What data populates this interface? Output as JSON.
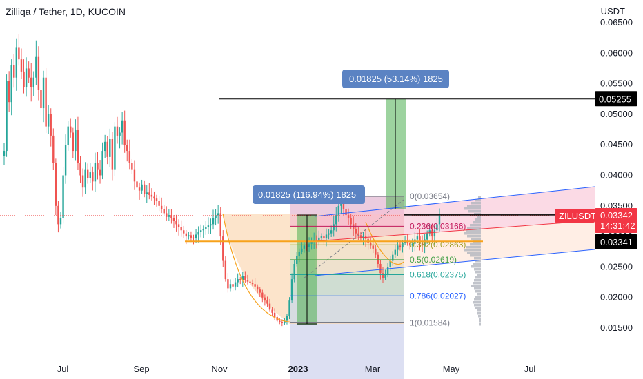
{
  "header": {
    "title": "Zilliqa / Tether, 1D, KUCOIN",
    "unit": "USDT"
  },
  "chart_data": {
    "type": "candlestick",
    "symbol": "ZILUSDT",
    "exchange": "KUCOIN",
    "interval": "1D",
    "ylim": [
      0.0138,
      0.0655
    ],
    "y_ticks": [
      "0.06500",
      "0.06000",
      "0.05500",
      "0.05000",
      "0.04500",
      "0.04000",
      "0.03500",
      "0.03000",
      "0.02500",
      "0.02000",
      "0.01500"
    ],
    "x_ticks": [
      {
        "label": "Jul",
        "bold": false
      },
      {
        "label": "Sep",
        "bold": false
      },
      {
        "label": "Nov",
        "bold": false
      },
      {
        "label": "2023",
        "bold": true
      },
      {
        "label": "Mar",
        "bold": false
      },
      {
        "label": "May",
        "bold": false
      },
      {
        "label": "Jul",
        "bold": false
      }
    ],
    "price_path": [
      [
        0.044,
        0.0555,
        0.052,
        0.058,
        0.056,
        0.061,
        0.059,
        0.057,
        0.0545,
        0.0575,
        0.056,
        0.0545,
        0.056,
        0.0595,
        0.054,
        0.051,
        0.056,
        0.048,
        0.05,
        0.0465,
        0.042,
        0.035,
        0.032,
        0.033,
        0.04,
        0.045,
        0.048,
        0.047,
        0.044,
        0.0475,
        0.042,
        0.04,
        0.038,
        0.041,
        0.0395,
        0.0405,
        0.039,
        0.042,
        0.041,
        0.04,
        0.044,
        0.0455,
        0.043,
        0.046,
        0.041,
        0.048,
        0.0465,
        0.047,
        0.049,
        0.045,
        0.044,
        0.042,
        0.041,
        0.039,
        0.038,
        0.0375,
        0.0385,
        0.037,
        0.0372,
        0.0368,
        0.0365,
        0.0362,
        0.0358,
        0.035,
        0.0345,
        0.0338,
        0.0332,
        0.0335,
        0.033,
        0.0326,
        0.032,
        0.0315,
        0.031,
        0.0305,
        0.03,
        0.0302,
        0.0298,
        0.0297,
        0.0303,
        0.0307,
        0.031,
        0.0312,
        0.0315,
        0.0318,
        0.032,
        0.033,
        0.0335,
        0.0338,
        0.03,
        0.026,
        0.023,
        0.0215,
        0.0222,
        0.0218,
        0.0225,
        0.023,
        0.0228,
        0.0235,
        0.0229,
        0.0226,
        0.0224,
        0.0222,
        0.0218,
        0.0213,
        0.0208,
        0.02,
        0.0195,
        0.019,
        0.018,
        0.0175,
        0.0168,
        0.0162,
        0.016,
        0.0158,
        0.0162,
        0.017,
        0.0195,
        0.023,
        0.0255,
        0.0268,
        0.0275,
        0.028,
        0.0285,
        0.0283,
        0.0288,
        0.0292,
        0.0294,
        0.0293,
        0.0298,
        0.03,
        0.0297,
        0.0303,
        0.0305,
        0.031,
        0.032,
        0.0335,
        0.035,
        0.0355,
        0.0345,
        0.0335,
        0.033,
        0.032,
        0.0312,
        0.0305,
        0.0302,
        0.0298,
        0.03,
        0.0296,
        0.029,
        0.0285,
        0.028,
        0.027,
        0.0255,
        0.024,
        0.0232,
        0.0238,
        0.025,
        0.026,
        0.027,
        0.0278,
        0.0285,
        0.0282,
        0.029,
        0.0293,
        0.029,
        0.0285,
        0.0288,
        0.0295,
        0.03,
        0.029,
        0.0285,
        0.0295,
        0.0305,
        0.031,
        0.03,
        0.031,
        0.032,
        0.0334
      ]
    ],
    "price_ticks": {
      "last": "0.03341",
      "cross": "0.03342",
      "countdown": "14:31:42",
      "target": "0.05255"
    },
    "labels": {
      "symbol_tag": "ZILUSDT",
      "measure_1": "0.01825 (116.94%) 1825",
      "measure_2": "0.01825 (53.14%) 1825"
    },
    "fib_levels": [
      {
        "ratio": "0",
        "value": "0.03654",
        "text": "0(0.03654)",
        "color": "#787b86"
      },
      {
        "ratio": "0.236",
        "value": "0.03166",
        "text": "0.236(0.03166)",
        "color": "#c2185b"
      },
      {
        "ratio": "0.382",
        "value": "0.02863",
        "text": "0.382(0.02863)",
        "color": "#9e9d24"
      },
      {
        "ratio": "0.5",
        "value": "0.02619",
        "text": "0.5(0.02619)",
        "color": "#43a047"
      },
      {
        "ratio": "0.618",
        "value": "0.02375",
        "text": "0.618(0.02375)",
        "color": "#26a69a"
      },
      {
        "ratio": "0.786",
        "value": "0.02027",
        "text": "0.786(0.02027)",
        "color": "#2962ff"
      },
      {
        "ratio": "1",
        "value": "0.01584",
        "text": "1(0.01584)",
        "color": "#787b86"
      }
    ],
    "support_line": 0.0292,
    "target_line": 0.05255,
    "colors": {
      "up": "#26a69a",
      "down": "#ef5350",
      "channel": "#2962ff",
      "mid_line": "#f23645",
      "support": "#f7a21b",
      "measure_box": "#5b83c3",
      "target_tag": "#000000",
      "symbol_tag": "#f23645"
    }
  }
}
